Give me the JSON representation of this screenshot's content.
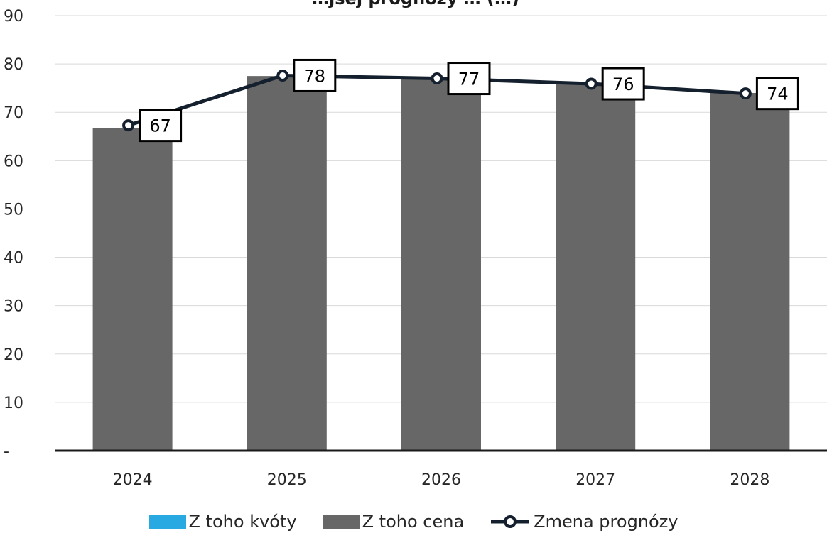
{
  "chart_data": {
    "type": "bar",
    "title": "…jšej prognózy … (…)",
    "categories": [
      "2024",
      "2025",
      "2026",
      "2027",
      "2028"
    ],
    "ylim": [
      0,
      90
    ],
    "yticks": [
      {
        "value": 0,
        "label": "-"
      },
      {
        "value": 10,
        "label": "10"
      },
      {
        "value": 20,
        "label": "20"
      },
      {
        "value": 30,
        "label": "30"
      },
      {
        "value": 40,
        "label": "40"
      },
      {
        "value": 50,
        "label": "50"
      },
      {
        "value": 60,
        "label": "60"
      },
      {
        "value": 70,
        "label": "70"
      },
      {
        "value": 80,
        "label": "80"
      },
      {
        "value": 90,
        "label": "90"
      }
    ],
    "grid": true,
    "legend_position": "bottom",
    "series": [
      {
        "name": "Z toho kvóty",
        "type": "bar",
        "color": "#29a9e1",
        "values": [
          0,
          0,
          0,
          0,
          0
        ]
      },
      {
        "name": "Z toho cena",
        "type": "bar",
        "color": "#676767",
        "values": [
          66.8,
          77.5,
          77.0,
          76.0,
          74.0
        ]
      },
      {
        "name": "Zmena prognózy",
        "type": "line",
        "color": "#15202e",
        "values": [
          67.3,
          77.6,
          77.0,
          75.9,
          73.9
        ],
        "data_labels": [
          "67",
          "78",
          "77",
          "76",
          "74"
        ]
      }
    ]
  }
}
